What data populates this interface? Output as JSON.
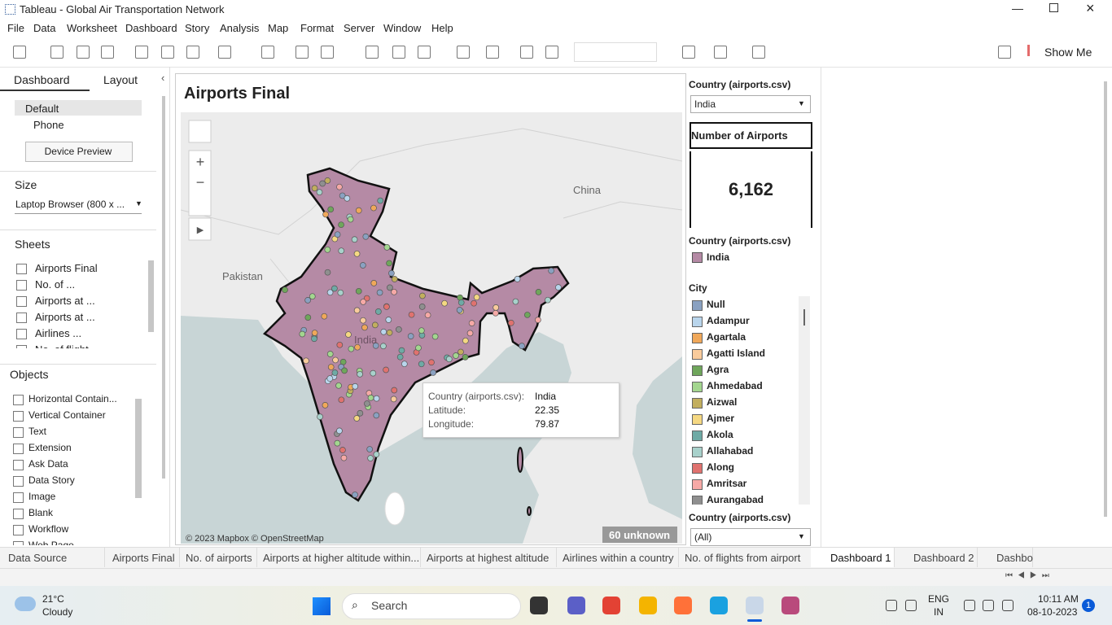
{
  "window": {
    "title": "Tableau - Global Air Transportation Network"
  },
  "menu": [
    "File",
    "Data",
    "Worksheet",
    "Dashboard",
    "Story",
    "Analysis",
    "Map",
    "Format",
    "Server",
    "Window",
    "Help"
  ],
  "toolbar": {
    "show_me": "Show Me"
  },
  "left_panel": {
    "tabs": [
      "Dashboard",
      "Layout"
    ],
    "devices": [
      "Default",
      "Phone"
    ],
    "device_preview": "Device Preview",
    "size_heading": "Size",
    "size_value": "Laptop Browser (800 x ...",
    "sheets_heading": "Sheets",
    "sheets": [
      "Airports Final",
      "No. of ...",
      "Airports at ...",
      "Airports at ...",
      "Airlines ...",
      "No. of flight"
    ],
    "objects_heading": "Objects",
    "objects": [
      "Horizontal Contain...",
      "Vertical Container",
      "Text",
      "Extension",
      "Ask Data",
      "Data Story",
      "Image",
      "Blank",
      "Workflow",
      "Web Page"
    ]
  },
  "dashboard": {
    "title": "Airports Final",
    "map": {
      "labels": [
        "China",
        "Pakistan",
        "India"
      ],
      "attribution": "© 2023 Mapbox © OpenStreetMap",
      "unknown": "60 unknown",
      "tooltip": [
        [
          "Country (airports.csv):",
          "India"
        ],
        [
          "Latitude:",
          "22.35"
        ],
        [
          "Longitude:",
          "79.87"
        ]
      ]
    }
  },
  "right_panel": {
    "filter_label": "Country (airports.csv)",
    "filter_value": "India",
    "kpi_title": "Number of Airports",
    "kpi_value": "6,162",
    "legend_title": "Country (airports.csv)",
    "legend_item": "India",
    "legend_color": "#b58aa5",
    "city_title": "City",
    "cities": [
      {
        "name": "Null",
        "color": "#8aa1c1"
      },
      {
        "name": "Adampur",
        "color": "#b9d5ec"
      },
      {
        "name": "Agartala",
        "color": "#f0a85a"
      },
      {
        "name": "Agatti Island",
        "color": "#f9cb9c"
      },
      {
        "name": "Agra",
        "color": "#6fa65b"
      },
      {
        "name": "Ahmedabad",
        "color": "#a3d68f"
      },
      {
        "name": "Aizwal",
        "color": "#c2ae5e"
      },
      {
        "name": "Ajmer",
        "color": "#f5d882"
      },
      {
        "name": "Akola",
        "color": "#6eaaa5"
      },
      {
        "name": "Allahabad",
        "color": "#a8d1cb"
      },
      {
        "name": "Along",
        "color": "#e0726f"
      },
      {
        "name": "Amritsar",
        "color": "#f6a9a6"
      },
      {
        "name": "Aurangabad",
        "color": "#8f8f8f"
      }
    ],
    "filter2_label": "Country (airports.csv)",
    "filter2_value": "(All)"
  },
  "sheet_tabs": [
    "Data Source",
    "Airports Final",
    "No. of airports",
    "Airports at higher altitude within...",
    "Airports at highest altitude",
    "Airlines within a country",
    "No. of flights from airport",
    "Dashboard 1",
    "Dashboard 2",
    "Dashbo"
  ],
  "taskbar": {
    "temperature": "21°C",
    "weather": "Cloudy",
    "search": "Search",
    "language": "ENG",
    "region": "IN",
    "time": "10:11 AM",
    "date": "08-10-2023",
    "notifications": "1"
  }
}
